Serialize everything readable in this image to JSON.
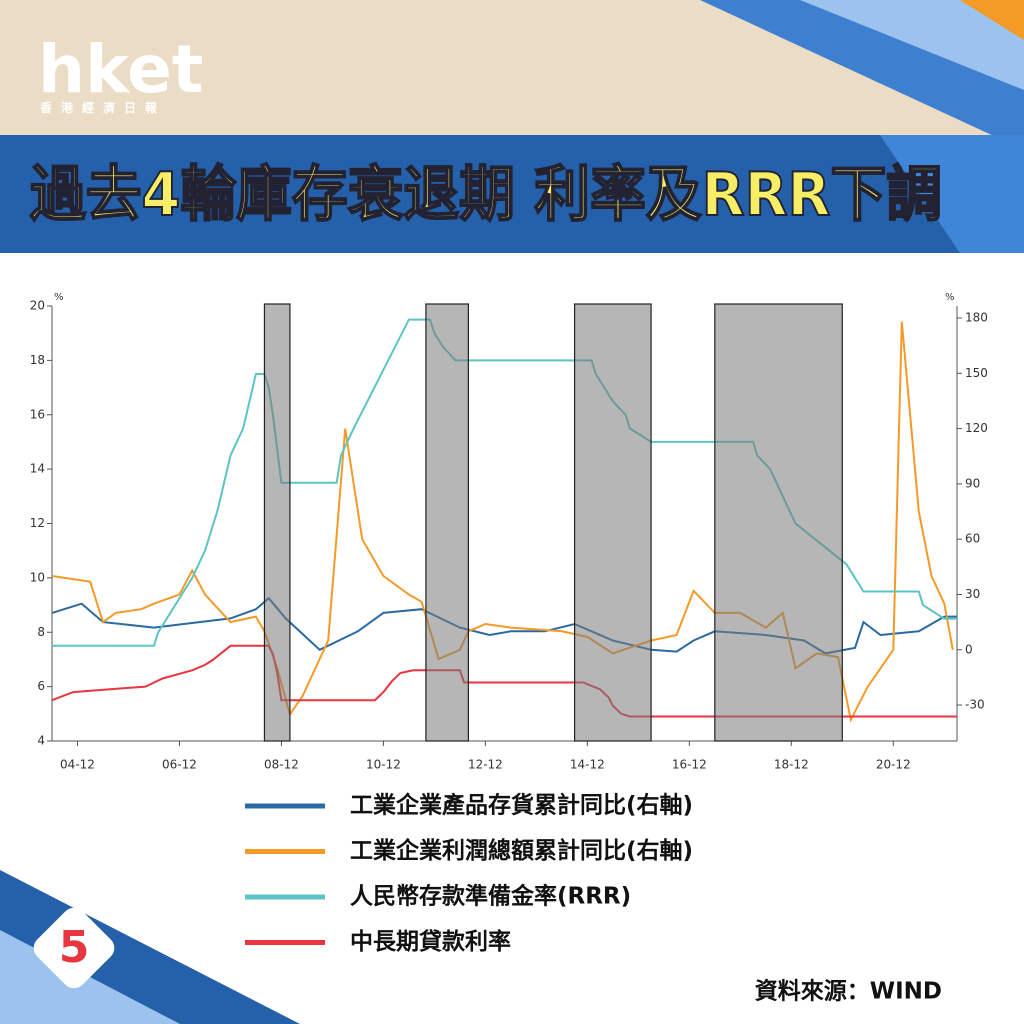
{
  "header": {
    "logo": "hket",
    "logo_sub": "香港經濟日報",
    "title": "過去4輪庫存衰退期 利率及RRR下調",
    "page_number": "5"
  },
  "source": "資料來源：WIND",
  "chart_data": {
    "type": "line",
    "y_unit": "%",
    "y2_unit": "%",
    "xlim": [
      "04-06",
      "22-03"
    ],
    "xticks": [
      "04-12",
      "06-12",
      "08-12",
      "10-12",
      "12-12",
      "14-12",
      "16-12",
      "18-12",
      "20-12"
    ],
    "ylim": [
      4,
      20
    ],
    "yticks": [
      4,
      6,
      8,
      10,
      12,
      14,
      16,
      18,
      20
    ],
    "y2lim": [
      -49.5,
      186.5
    ],
    "y2ticks": [
      -30,
      0,
      30,
      60,
      90,
      120,
      150,
      180
    ],
    "shaded_periods": [
      {
        "start": "08-08",
        "end": "09-02"
      },
      {
        "start": "11-10",
        "end": "12-08"
      },
      {
        "start": "14-09",
        "end": "16-03"
      },
      {
        "start": "17-06",
        "end": "19-12"
      }
    ],
    "series": [
      {
        "name": "工業企業產品存貨累計同比(右軸)",
        "color": "#2a6aa3",
        "axis": "y2",
        "x": [
          "04-06",
          "05-01",
          "05-06",
          "06-06",
          "07-01",
          "07-12",
          "08-06",
          "08-09",
          "09-01",
          "09-09",
          "10-06",
          "10-12",
          "11-09",
          "12-06",
          "13-01",
          "13-06",
          "14-02",
          "14-09",
          "15-06",
          "16-03",
          "16-09",
          "17-01",
          "17-06",
          "18-06",
          "19-03",
          "19-08",
          "20-03",
          "20-05",
          "20-09",
          "21-06",
          "21-12",
          "22-03"
        ],
        "values": [
          20,
          25,
          15,
          12,
          14,
          17,
          22,
          28,
          17,
          0,
          10,
          20,
          22,
          12,
          8,
          10,
          10,
          14,
          5,
          0,
          -1,
          5,
          10,
          8,
          5,
          -2,
          1,
          15,
          8,
          10,
          18,
          18
        ]
      },
      {
        "name": "工業企業利潤總額累計同比(右軸)",
        "color": "#f39a27",
        "axis": "y2",
        "x": [
          "04-06",
          "05-03",
          "05-06",
          "05-09",
          "06-03",
          "06-06",
          "06-12",
          "07-03",
          "07-06",
          "07-12",
          "08-06",
          "08-08",
          "08-11",
          "09-02",
          "09-05",
          "09-11",
          "10-03",
          "10-07",
          "10-12",
          "11-06",
          "11-09",
          "12-01",
          "12-06",
          "12-08",
          "12-12",
          "13-06",
          "14-06",
          "14-12",
          "15-06",
          "16-03",
          "16-09",
          "17-01",
          "17-06",
          "17-12",
          "18-06",
          "18-10",
          "19-01",
          "19-06",
          "19-11",
          "20-02",
          "20-06",
          "20-12",
          "21-02",
          "21-06",
          "21-09",
          "21-12",
          "22-02"
        ],
        "values": [
          40,
          37,
          15,
          20,
          22,
          25,
          30,
          43,
          30,
          15,
          18,
          10,
          -10,
          -35,
          -25,
          5,
          120,
          60,
          40,
          30,
          26,
          -5,
          0,
          10,
          14,
          12,
          10,
          7,
          -2,
          5,
          8,
          32,
          20,
          20,
          12,
          20,
          -10,
          -2,
          -4,
          -38,
          -20,
          0,
          178,
          75,
          40,
          25,
          0
        ]
      },
      {
        "name": "人民幣存款準備金率(RRR)",
        "color": "#5cc4c4",
        "axis": "y",
        "x": [
          "04-06",
          "06-06",
          "06-07",
          "06-11",
          "07-01",
          "07-03",
          "07-06",
          "07-09",
          "07-12",
          "08-03",
          "08-06",
          "08-08",
          "08-09",
          "08-10",
          "08-12",
          "10-01",
          "10-02",
          "10-05",
          "11-06",
          "11-11",
          "11-12",
          "12-02",
          "12-05",
          "15-01",
          "15-02",
          "15-04",
          "15-06",
          "15-09",
          "15-10",
          "16-03",
          "18-03",
          "18-04",
          "18-07",
          "18-10",
          "19-01",
          "19-09",
          "20-01",
          "20-05",
          "21-06",
          "21-07",
          "21-12",
          "22-03"
        ],
        "values": [
          7.5,
          7.5,
          8.0,
          9.0,
          9.5,
          10.0,
          11.0,
          12.5,
          14.5,
          15.5,
          17.5,
          17.5,
          17.0,
          16.0,
          13.5,
          13.5,
          14.5,
          15.5,
          19.5,
          19.5,
          19.0,
          18.5,
          18.0,
          18.0,
          17.5,
          17.0,
          16.5,
          16.0,
          15.5,
          15.0,
          15.0,
          14.5,
          14.0,
          13.0,
          12.0,
          11.0,
          10.5,
          9.5,
          9.5,
          9.0,
          8.5,
          8.5
        ]
      },
      {
        "name": "中長期貸款利率",
        "color": "#e8353f",
        "axis": "y",
        "x": [
          "04-06",
          "04-11",
          "06-04",
          "06-08",
          "07-03",
          "07-06",
          "07-08",
          "07-12",
          "08-09",
          "08-10",
          "08-11",
          "08-12",
          "10-10",
          "10-12",
          "11-02",
          "11-04",
          "11-07",
          "12-06",
          "12-07",
          "14-11",
          "15-03",
          "15-05",
          "15-06",
          "15-08",
          "15-10",
          "22-03"
        ],
        "values": [
          5.5,
          5.8,
          6.0,
          6.3,
          6.6,
          6.8,
          7.0,
          7.5,
          7.5,
          7.2,
          6.5,
          5.5,
          5.5,
          5.8,
          6.2,
          6.5,
          6.6,
          6.6,
          6.15,
          6.15,
          5.9,
          5.6,
          5.3,
          5.0,
          4.9,
          4.9
        ]
      }
    ]
  }
}
